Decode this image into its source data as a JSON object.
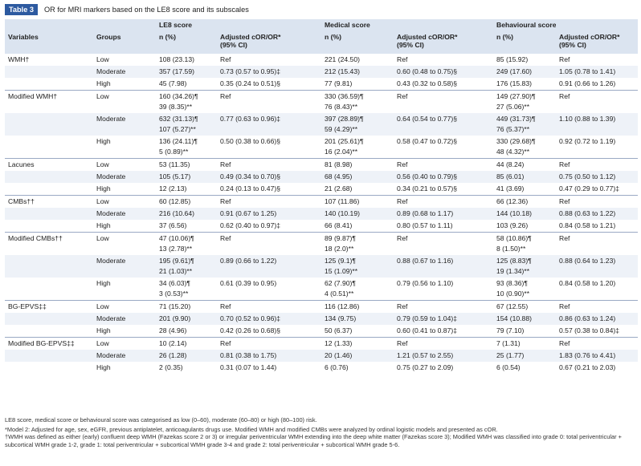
{
  "caption": {
    "label": "Table 3",
    "title": "OR for MRI markers based on the LE8 score and its subscales"
  },
  "header": {
    "group_row": [
      "",
      "",
      "LE8 score",
      "",
      "Medical score",
      "",
      "Behavioural score",
      ""
    ],
    "col_row": [
      "Variables",
      "Groups",
      "n (%)",
      "Adjusted cOR/OR*|(95% CI)",
      "n (%)",
      "Adjusted cOR/OR*|(95% CI)",
      "n (%)",
      "Adjusted cOR/OR*|(95% CI)"
    ]
  },
  "rows": [
    {
      "shade": false,
      "sep": false,
      "cells": [
        "WMH†",
        "Low",
        "108 (23.13)",
        "Ref",
        "221 (24.50)",
        "Ref",
        "85 (15.92)",
        "Ref"
      ]
    },
    {
      "shade": true,
      "sep": false,
      "cells": [
        "",
        "Moderate",
        "357 (17.59)",
        "0.73 (0.57 to 0.95)‡",
        "212 (15.43)",
        "0.60 (0.48 to 0.75)§",
        "249 (17.60)",
        "1.05 (0.78 to 1.41)"
      ]
    },
    {
      "shade": false,
      "sep": false,
      "cells": [
        "",
        "High",
        "45 (7.98)",
        "0.35 (0.24 to 0.51)§",
        "77 (9.81)",
        "0.43 (0.32 to 0.58)§",
        "176 (15.83)",
        "0.91 (0.66 to 1.26)"
      ]
    },
    {
      "shade": false,
      "sep": true,
      "cells": [
        "Modified WMH†",
        "Low",
        "160 (34.26)¶|39 (8.35)**",
        "Ref",
        "330 (36.59)¶|76 (8.43)**",
        "Ref",
        "149 (27.90)¶|27 (5.06)**",
        "Ref"
      ]
    },
    {
      "shade": true,
      "sep": false,
      "cells": [
        "",
        "Moderate",
        "632 (31.13)¶|107 (5.27)**",
        "0.77 (0.63 to 0.96)‡",
        "397 (28.89)¶|59 (4.29)**",
        "0.64 (0.54 to 0.77)§",
        "449 (31.73)¶|76 (5.37)**",
        "1.10 (0.88 to 1.39)"
      ]
    },
    {
      "shade": false,
      "sep": false,
      "cells": [
        "",
        "High",
        "136 (24.11)¶|5 (0.89)**",
        "0.50 (0.38 to 0.66)§",
        "201 (25.61)¶|16 (2.04)**",
        "0.58 (0.47 to 0.72)§",
        "330 (29.68)¶|48 (4.32)**",
        "0.92 (0.72 to 1.19)"
      ]
    },
    {
      "shade": false,
      "sep": true,
      "cells": [
        "Lacunes",
        "Low",
        "53 (11.35)",
        "Ref",
        "81 (8.98)",
        "Ref",
        "44 (8.24)",
        "Ref"
      ]
    },
    {
      "shade": true,
      "sep": false,
      "cells": [
        "",
        "Moderate",
        "105 (5.17)",
        "0.49 (0.34 to 0.70)§",
        "68 (4.95)",
        "0.56 (0.40 to 0.79)§",
        "85 (6.01)",
        "0.75 (0.50 to 1.12)"
      ]
    },
    {
      "shade": false,
      "sep": false,
      "cells": [
        "",
        "High",
        "12 (2.13)",
        "0.24 (0.13 to 0.47)§",
        "21 (2.68)",
        "0.34 (0.21 to 0.57)§",
        "41 (3.69)",
        "0.47 (0.29 to 0.77)‡"
      ]
    },
    {
      "shade": false,
      "sep": true,
      "cells": [
        "CMBs††",
        "Low",
        "60 (12.85)",
        "Ref",
        "107 (11.86)",
        "Ref",
        "66 (12.36)",
        "Ref"
      ]
    },
    {
      "shade": true,
      "sep": false,
      "cells": [
        "",
        "Moderate",
        "216 (10.64)",
        "0.91 (0.67 to 1.25)",
        "140 (10.19)",
        "0.89 (0.68 to 1.17)",
        "144 (10.18)",
        "0.88 (0.63 to 1.22)"
      ]
    },
    {
      "shade": false,
      "sep": false,
      "cells": [
        "",
        "High",
        "37 (6.56)",
        "0.62 (0.40 to 0.97)‡",
        "66 (8.41)",
        "0.80 (0.57 to 1.11)",
        "103 (9.26)",
        "0.84 (0.58 to 1.21)"
      ]
    },
    {
      "shade": false,
      "sep": true,
      "cells": [
        "Modified CMBs††",
        "Low",
        "47 (10.06)¶|13 (2.78)**",
        "Ref",
        "89 (9.87)¶|18 (2.0)**",
        "Ref",
        "58 (10.86)¶|8 (1.50)**",
        "Ref"
      ]
    },
    {
      "shade": true,
      "sep": false,
      "cells": [
        "",
        "Moderate",
        "195 (9.61)¶|21 (1.03)**",
        "0.89 (0.66 to 1.22)",
        "125 (9.1)¶|15 (1.09)**",
        "0.88 (0.67 to 1.16)",
        "125 (8.83)¶|19 (1.34)**",
        "0.88 (0.64 to 1.23)"
      ]
    },
    {
      "shade": false,
      "sep": false,
      "cells": [
        "",
        "High",
        "34 (6.03)¶|3 (0.53)**",
        "0.61 (0.39 to 0.95)",
        "62 (7.90)¶|4 (0.51)**",
        "0.79 (0.56 to 1.10)",
        "93 (8.36)¶|10 (0.90)**",
        "0.84 (0.58 to 1.20)"
      ]
    },
    {
      "shade": false,
      "sep": true,
      "cells": [
        "BG-EPVS‡‡",
        "Low",
        "71 (15.20)",
        "Ref",
        "116 (12.86)",
        "Ref",
        "67 (12.55)",
        "Ref"
      ]
    },
    {
      "shade": true,
      "sep": false,
      "cells": [
        "",
        "Moderate",
        "201 (9.90)",
        "0.70 (0.52 to 0.96)‡",
        "134 (9.75)",
        "0.79 (0.59 to 1.04)‡",
        "154 (10.88)",
        "0.86 (0.63 to 1.24)"
      ]
    },
    {
      "shade": false,
      "sep": false,
      "cells": [
        "",
        "High",
        "28 (4.96)",
        "0.42 (0.26 to 0.68)§",
        "50 (6.37)",
        "0.60 (0.41 to 0.87)‡",
        "79 (7.10)",
        "0.57 (0.38 to 0.84)‡"
      ]
    },
    {
      "shade": false,
      "sep": true,
      "cells": [
        "Modified BG-EPVS‡‡",
        "Low",
        "10 (2.14)",
        "Ref",
        "12 (1.33)",
        "Ref",
        "7 (1.31)",
        "Ref"
      ]
    },
    {
      "shade": true,
      "sep": false,
      "cells": [
        "",
        "Moderate",
        "26 (1.28)",
        "0.81 (0.38 to 1.75)",
        "20 (1.46)",
        "1.21 (0.57 to 2.55)",
        "25 (1.77)",
        "1.83 (0.76 to 4.41)"
      ]
    },
    {
      "shade": false,
      "sep": false,
      "cells": [
        "",
        "High",
        "2 (0.35)",
        "0.31 (0.07 to 1.44)",
        "6 (0.76)",
        "0.75 (0.27 to 2.09)",
        "6 (0.54)",
        "0.67 (0.21 to 2.03)"
      ]
    }
  ],
  "footnotes": [
    "LE8 score, medical score or behavioural score was categorised as low (0–60), moderate (60–80) or high (80–100) risk.",
    "*Model 2: Adjusted for age, sex, eGFR, previous antiplatelet, anticoagulants drugs use. Modified WMH and modified CMBs were analyzed by ordinal logistic models and presented as cOR.",
    "†WMH was defined as either (early) confluent deep WMH (Fazekas score 2 or 3) or irregular periventricular WMH extending into the deep white matter (Fazekas score 3); Modified WMH was classified into grade 0: total periventricular + subcortical WMH grade 1-2, grade 1: total periventricular + subcortical WMH grade 3-4 and grade 2: total periventricular + subcortical WMH grade 5-6."
  ]
}
